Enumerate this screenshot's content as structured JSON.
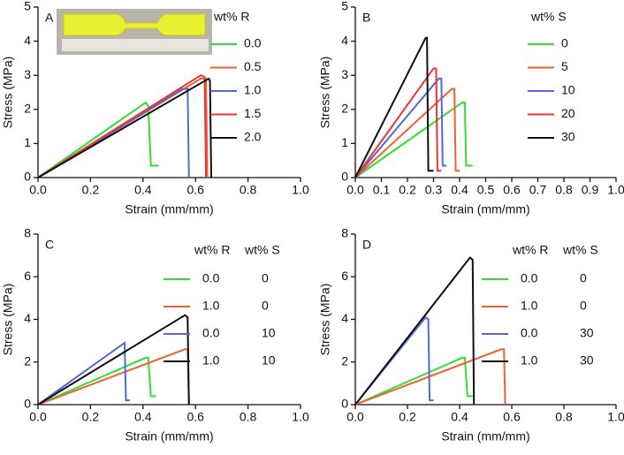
{
  "chart_data": [
    {
      "type": "line",
      "panel_label": "A",
      "xlabel": "Strain (mm/mm)",
      "ylabel": "Stress (MPa)",
      "xlim": [
        0,
        1
      ],
      "ylim": [
        0,
        5
      ],
      "xticks": [
        {
          "value": 0,
          "label": "0.0"
        },
        0.2,
        0.4,
        0.6,
        0.8,
        {
          "value": 1,
          "label": "1.0"
        }
      ],
      "yticks": [
        0,
        1,
        2,
        3,
        4,
        5
      ],
      "legend_title": "wt% R",
      "series": [
        {
          "name": "0.0",
          "color": "#33dd33",
          "x": [
            0,
            0.41,
            0.42,
            0.43,
            0.46
          ],
          "values": [
            0,
            2.2,
            2.1,
            0.35,
            0.35
          ]
        },
        {
          "name": "0.5",
          "color": "#f06030",
          "x": [
            0,
            0.62,
            0.64,
            0.645
          ],
          "values": [
            0,
            2.9,
            2.9,
            0
          ]
        },
        {
          "name": "1.0",
          "color": "#5566dd",
          "x": [
            0,
            0.55,
            0.57,
            0.575
          ],
          "values": [
            0,
            2.6,
            2.6,
            0
          ]
        },
        {
          "name": "1.5",
          "color": "#ee3333",
          "x": [
            0,
            0.62,
            0.635,
            0.64
          ],
          "values": [
            0,
            3.0,
            2.95,
            0
          ]
        },
        {
          "name": "2.0",
          "color": "#111111",
          "x": [
            0,
            0.65,
            0.655,
            0.66
          ],
          "values": [
            0,
            2.9,
            2.85,
            0
          ]
        }
      ]
    },
    {
      "type": "line",
      "panel_label": "B",
      "xlabel": "Strain (mm/mm)",
      "ylabel": "Stress (MPa)",
      "xlim": [
        0,
        1
      ],
      "ylim": [
        0,
        5
      ],
      "xticks": [
        {
          "value": 0,
          "label": "0.0"
        },
        0.1,
        0.2,
        0.3,
        0.4,
        0.5,
        0.6,
        0.7,
        0.8,
        0.9,
        {
          "value": 1,
          "label": "1.0"
        }
      ],
      "yticks": [
        0,
        1,
        2,
        3,
        4,
        5
      ],
      "legend_title": "wt% S",
      "series": [
        {
          "name": "0",
          "color": "#33dd33",
          "x": [
            0,
            0.41,
            0.42,
            0.425,
            0.45
          ],
          "values": [
            0,
            2.2,
            2.2,
            0.35,
            0.35
          ]
        },
        {
          "name": "5",
          "color": "#f06030",
          "x": [
            0,
            0.37,
            0.38,
            0.385,
            0.4
          ],
          "values": [
            0,
            2.6,
            2.6,
            0.2,
            0.2
          ]
        },
        {
          "name": "10",
          "color": "#5566dd",
          "x": [
            0,
            0.32,
            0.33,
            0.335,
            0.35
          ],
          "values": [
            0,
            2.9,
            2.9,
            0.35,
            0.35
          ]
        },
        {
          "name": "20",
          "color": "#ee3333",
          "x": [
            0,
            0.3,
            0.31,
            0.315,
            0.33
          ],
          "values": [
            0,
            3.2,
            3.2,
            0.2,
            0.2
          ]
        },
        {
          "name": "30",
          "color": "#111111",
          "x": [
            0,
            0.27,
            0.275,
            0.28,
            0.3
          ],
          "values": [
            0,
            4.1,
            4.1,
            0.2,
            0.2
          ]
        }
      ]
    },
    {
      "type": "line",
      "panel_label": "C",
      "xlabel": "Strain (mm/mm)",
      "ylabel": "Stress (MPa)",
      "xlim": [
        0,
        1
      ],
      "ylim": [
        0,
        8
      ],
      "xticks": [
        {
          "value": 0,
          "label": "0.0"
        },
        0.2,
        0.4,
        0.6,
        0.8,
        {
          "value": 1,
          "label": "1.0"
        }
      ],
      "yticks": [
        0,
        2,
        4,
        6,
        8
      ],
      "legend_columns": [
        "wt% R",
        "wt% S"
      ],
      "series": [
        {
          "labels": [
            "0.0",
            "0"
          ],
          "color": "#33dd33",
          "x": [
            0,
            0.41,
            0.42,
            0.43,
            0.45
          ],
          "values": [
            0,
            2.2,
            2.2,
            0.4,
            0.4
          ]
        },
        {
          "labels": [
            "1.0",
            "0"
          ],
          "color": "#f06030",
          "x": [
            0,
            0.56,
            0.57,
            0.575
          ],
          "values": [
            0,
            2.6,
            2.6,
            0
          ]
        },
        {
          "labels": [
            "0.0",
            "10"
          ],
          "color": "#5566dd",
          "x": [
            0,
            0.33,
            0.335,
            0.35
          ],
          "values": [
            0,
            2.9,
            0.2,
            0.2
          ]
        },
        {
          "labels": [
            "1.0",
            "10"
          ],
          "color": "#111111",
          "x": [
            0,
            0.56,
            0.57,
            0.575
          ],
          "values": [
            0,
            4.2,
            4.1,
            0
          ]
        }
      ]
    },
    {
      "type": "line",
      "panel_label": "D",
      "xlabel": "Strain (mm/mm)",
      "ylabel": "Stress (MPa)",
      "xlim": [
        0,
        1
      ],
      "ylim": [
        0,
        8
      ],
      "xticks": [
        {
          "value": 0,
          "label": "0.0"
        },
        0.2,
        0.4,
        0.6,
        0.8,
        {
          "value": 1,
          "label": "1.0"
        }
      ],
      "yticks": [
        0,
        2,
        4,
        6,
        8
      ],
      "legend_columns": [
        "wt% R",
        "wt% S"
      ],
      "series": [
        {
          "labels": [
            "0.0",
            "0"
          ],
          "color": "#33dd33",
          "x": [
            0,
            0.41,
            0.42,
            0.43,
            0.45
          ],
          "values": [
            0,
            2.2,
            2.2,
            0.4,
            0.4
          ]
        },
        {
          "labels": [
            "1.0",
            "0"
          ],
          "color": "#f06030",
          "x": [
            0,
            0.56,
            0.57,
            0.575
          ],
          "values": [
            0,
            2.6,
            2.6,
            0
          ]
        },
        {
          "labels": [
            "0.0",
            "30"
          ],
          "color": "#5566dd",
          "x": [
            0,
            0.27,
            0.28,
            0.285,
            0.3
          ],
          "values": [
            0,
            4.1,
            4.0,
            0.2,
            0.2
          ]
        },
        {
          "labels": [
            "1.0",
            "30"
          ],
          "color": "#111111",
          "x": [
            0,
            0.44,
            0.45,
            0.455
          ],
          "values": [
            0,
            6.9,
            6.8,
            0
          ]
        }
      ]
    }
  ]
}
